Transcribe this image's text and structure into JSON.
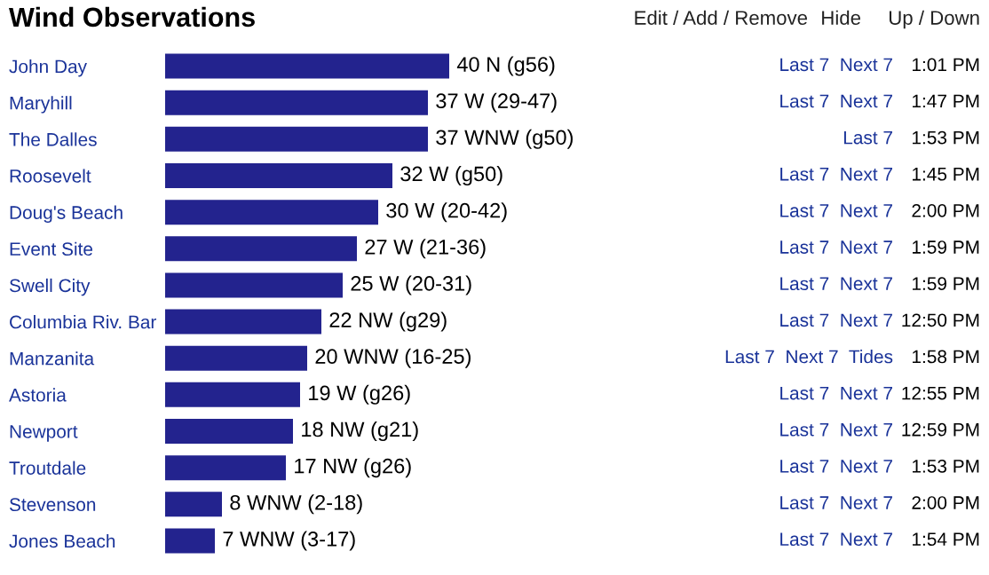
{
  "chart_data": {
    "type": "bar",
    "orientation": "horizontal",
    "title": "Wind Observations",
    "categories": [
      "John Day",
      "Maryhill",
      "The Dalles",
      "Roosevelt",
      "Doug's Beach",
      "Event Site",
      "Swell City",
      "Columbia Riv. Bar",
      "Manzanita",
      "Astoria",
      "Newport",
      "Troutdale",
      "Stevenson",
      "Jones Beach"
    ],
    "values": [
      40,
      37,
      37,
      32,
      30,
      27,
      25,
      22,
      20,
      19,
      18,
      17,
      8,
      7
    ],
    "value_labels": [
      "40 N (g56)",
      "37 W (29-47)",
      "37 WNW (g50)",
      "32 W (g50)",
      "30 W (20-42)",
      "27 W (21-36)",
      "25 W (20-31)",
      "22 NW (g29)",
      "20 WNW (16-25)",
      "19 W (g26)",
      "18 NW (g21)",
      "17 NW (g26)",
      "8 WNW (2-18)",
      "7 WNW (3-17)"
    ],
    "color": "#23238e",
    "annotations": [
      "Edit / Add / Remove",
      "Hide",
      "Up / Down",
      "Last 7  Next 7",
      "1:01 PM",
      "Last 7  Next 7",
      "1:47 PM",
      "Last 7",
      "1:53 PM",
      "Last 7  Next 7",
      "1:45 PM",
      "Last 7  Next 7",
      "2:00 PM",
      "Last 7  Next 7",
      "1:59 PM",
      "Last 7  Next 7",
      "1:59 PM",
      "Last 7  Next 7",
      "12:50 PM",
      "Last 7  Next 7  Tides",
      "1:58 PM",
      "Last 7  Next 7",
      "12:55 PM",
      "Last 7  Next 7",
      "12:59 PM",
      "Last 7  Next 7",
      "1:53 PM",
      "Last 7  Next 7",
      "2:00 PM",
      "Last 7  Next 7",
      "1:54 PM"
    ]
  }
}
